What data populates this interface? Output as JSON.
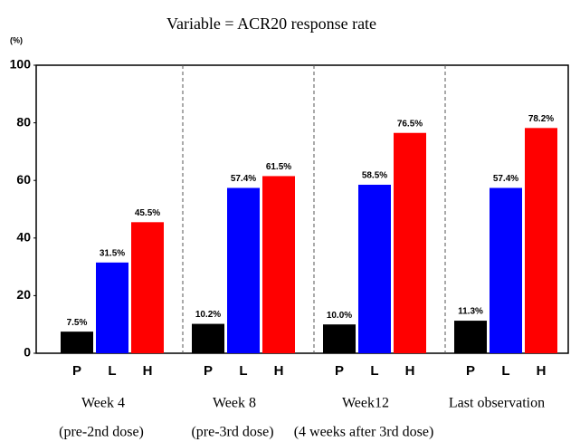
{
  "chart_data": {
    "type": "bar",
    "title": "Variable = ACR20 response rate",
    "y_label": "(%)",
    "categories": [
      "Week 4",
      "Week 8",
      "Week12",
      "Last observation"
    ],
    "category_subtitles": [
      "(pre-2nd dose)",
      "(pre-3rd dose)",
      "(4 weeks after 3rd dose)"
    ],
    "series": [
      {
        "name": "P",
        "color": "#000000",
        "values": [
          7.5,
          10.2,
          10.0,
          11.3
        ],
        "value_labels": [
          "7.5%",
          "10.2%",
          "10.0%",
          "11.3%"
        ]
      },
      {
        "name": "L",
        "color": "#0000ff",
        "values": [
          31.5,
          57.4,
          58.5,
          57.4
        ],
        "value_labels": [
          "31.5%",
          "57.4%",
          "58.5%",
          "57.4%"
        ]
      },
      {
        "name": "H",
        "color": "#ff0000",
        "values": [
          45.5,
          61.5,
          76.5,
          78.2
        ],
        "value_labels": [
          "45.5%",
          "61.5%",
          "76.5%",
          "78.2%"
        ]
      }
    ],
    "ylim": [
      0,
      100
    ],
    "yticks": [
      0,
      20,
      40,
      60,
      80,
      100
    ]
  }
}
